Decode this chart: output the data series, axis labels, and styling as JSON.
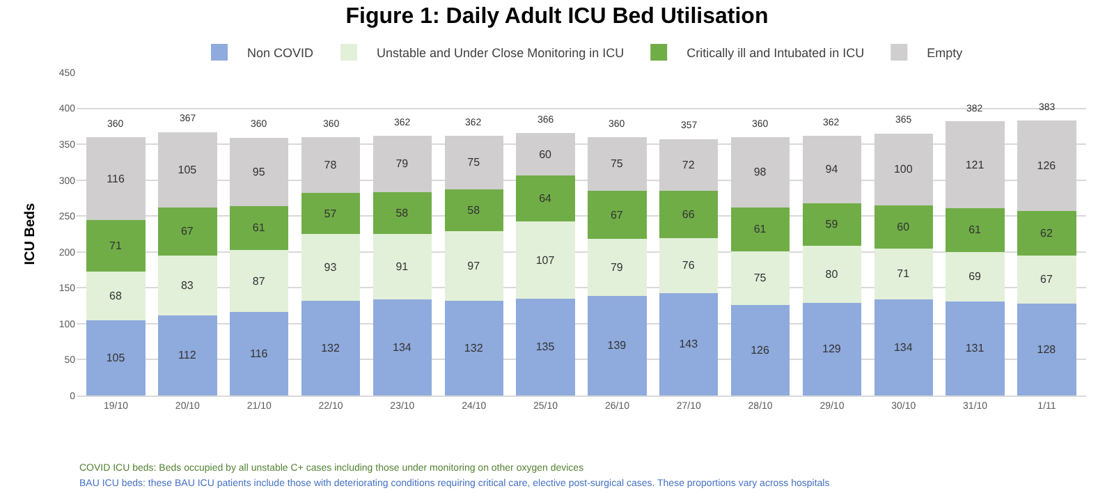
{
  "chart_data": {
    "type": "bar",
    "stacked": true,
    "title": "Figure 1: Daily Adult ICU Bed Utilisation",
    "ylabel": "ICU Beds",
    "categories": [
      "19/10",
      "20/10",
      "21/10",
      "22/10",
      "23/10",
      "24/10",
      "25/10",
      "26/10",
      "27/10",
      "28/10",
      "29/10",
      "30/10",
      "31/10",
      "1/11"
    ],
    "series": [
      {
        "name": "Non COVID",
        "color": "#8faadc",
        "values": [
          105,
          112,
          116,
          132,
          134,
          132,
          135,
          139,
          143,
          126,
          129,
          134,
          131,
          128
        ]
      },
      {
        "name": "Unstable and Under Close Monitoring in ICU",
        "color": "#e2f0d9",
        "values": [
          68,
          83,
          87,
          93,
          91,
          97,
          107,
          79,
          76,
          75,
          80,
          71,
          69,
          67
        ]
      },
      {
        "name": "Critically ill and Intubated in ICU",
        "color": "#70ad47",
        "values": [
          71,
          67,
          61,
          57,
          58,
          58,
          64,
          67,
          66,
          61,
          59,
          60,
          61,
          62
        ]
      },
      {
        "name": "Empty",
        "color": "#d0cece",
        "values": [
          116,
          105,
          95,
          78,
          79,
          75,
          60,
          75,
          72,
          98,
          94,
          100,
          121,
          126
        ]
      }
    ],
    "totals": [
      "360",
      "367",
      "360",
      "360",
      "362",
      "362",
      "366",
      "360",
      "357",
      "360",
      "362",
      "365",
      "382",
      "383"
    ],
    "data_labels": true,
    "ylim": [
      0,
      450
    ],
    "yticks": [
      0,
      50,
      100,
      150,
      200,
      250,
      300,
      350,
      400,
      450
    ],
    "grid": "y",
    "legend": "top",
    "annotations": [
      "COVID ICU beds: Beds occupied by all unstable C+ cases including those under monitoring on other oxygen devices",
      "BAU ICU beds: these BAU ICU patients include those with deteriorating conditions requiring critical care, elective post-surgical cases. These proportions vary across hospitals"
    ]
  }
}
